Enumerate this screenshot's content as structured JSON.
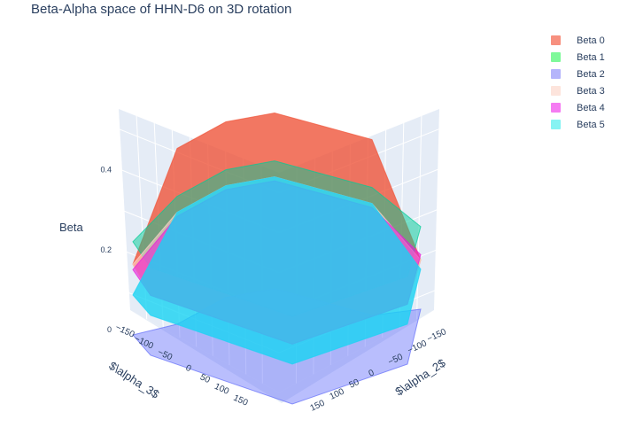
{
  "title": "Beta-Alpha space of HHN-D6 on 3D rotation",
  "chart_data": {
    "type": "surface3d",
    "title": "Beta-Alpha space of HHN-D6 on 3D rotation",
    "zlabel": "Beta",
    "xlabel": "$\\alpha_3$",
    "ylabel": "$\\alpha_2$",
    "z_ticks": [
      "0",
      "0.2",
      "0.4"
    ],
    "zlim": [
      0,
      0.55
    ],
    "x_ticks": [
      "−150",
      "−100",
      "−50",
      "0",
      "50",
      "100",
      "150"
    ],
    "y_ticks": [
      "−150",
      "−100",
      "−50",
      "0",
      "50",
      "100",
      "150"
    ],
    "xlim": [
      -180,
      180
    ],
    "ylim": [
      -180,
      180
    ],
    "legend_position": "top-right",
    "series": [
      {
        "name": "Beta 0",
        "color": "#ef553b",
        "opacity": 0.8,
        "approx_peak_beta": 0.54,
        "approx_base_beta": 0.15
      },
      {
        "name": "Beta 1",
        "color": "#00cc96",
        "opacity": 0.5,
        "approx_peak_beta": 0.42,
        "approx_base_beta": 0.22
      },
      {
        "name": "Beta 2",
        "color": "#636efa",
        "opacity": 0.45,
        "approx_peak_beta": 0.1,
        "approx_base_beta": 0.0
      },
      {
        "name": "Beta 3",
        "color": "#ffd6cc",
        "opacity": 0.6,
        "approx_peak_beta": 0.38,
        "approx_base_beta": 0.15
      },
      {
        "name": "Beta 4",
        "color": "#e81cd8",
        "opacity": 0.6,
        "approx_peak_beta": 0.37,
        "approx_base_beta": 0.15
      },
      {
        "name": "Beta 5",
        "color": "#19d3f3",
        "opacity": 0.8,
        "approx_peak_beta": 0.38,
        "approx_base_beta": 0.1
      }
    ]
  },
  "legend_swatches": [
    {
      "name": "Beta 0",
      "color": "#f7907f"
    },
    {
      "name": "Beta 1",
      "color": "#7ff99a"
    },
    {
      "name": "Beta 2",
      "color": "#b5b5fb"
    },
    {
      "name": "Beta 3",
      "color": "#fde4dc"
    },
    {
      "name": "Beta 4",
      "color": "#f57cf2"
    },
    {
      "name": "Beta 5",
      "color": "#86f3f3"
    }
  ]
}
